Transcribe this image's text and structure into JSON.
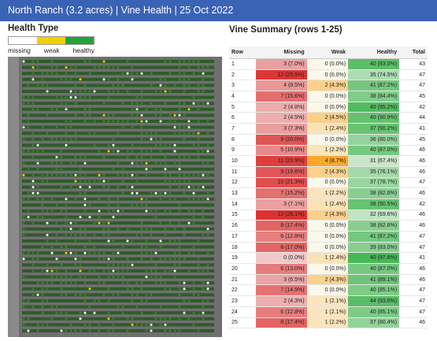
{
  "header": {
    "title": "North Ranch (3.2 acres) | Vine Health | 25 Oct 2022"
  },
  "health_type": {
    "title": "Health Type",
    "legend": [
      {
        "label": "missing",
        "color": "#ffffff"
      },
      {
        "label": "weak",
        "color": "#f2d000"
      },
      {
        "label": "healthy",
        "color": "#25a23a"
      }
    ]
  },
  "summary": {
    "title": "Vine Summary (rows 1-25)",
    "columns": [
      "Row",
      "Missing",
      "Weak",
      "Healthy",
      "Total"
    ],
    "rows": [
      {
        "row": "1",
        "missing": "3 (7.0%)",
        "weak": "0 (0.0%)",
        "healthy": "40 (93.0%)",
        "total": "43",
        "mp": 7.0,
        "wp": 0.0,
        "hp": 93.0
      },
      {
        "row": "2",
        "missing": "12 (25.5%)",
        "weak": "0 (0.0%)",
        "healthy": "35 (74.5%)",
        "total": "47",
        "mp": 25.5,
        "wp": 0.0,
        "hp": 74.5
      },
      {
        "row": "3",
        "missing": "4 (8.5%)",
        "weak": "2 (4.3%)",
        "healthy": "41 (87.2%)",
        "total": "47",
        "mp": 8.5,
        "wp": 4.3,
        "hp": 87.2
      },
      {
        "row": "4",
        "missing": "7 (15.6%)",
        "weak": "0 (0.0%)",
        "healthy": "38 (84.4%)",
        "total": "45",
        "mp": 15.6,
        "wp": 0.0,
        "hp": 84.4
      },
      {
        "row": "5",
        "missing": "2 (4.8%)",
        "weak": "0 (0.0%)",
        "healthy": "40 (95.2%)",
        "total": "42",
        "mp": 4.8,
        "wp": 0.0,
        "hp": 95.2
      },
      {
        "row": "6",
        "missing": "2 (4.5%)",
        "weak": "2 (4.5%)",
        "healthy": "40 (90.9%)",
        "total": "44",
        "mp": 4.5,
        "wp": 4.5,
        "hp": 90.9
      },
      {
        "row": "7",
        "missing": "3 (7.3%)",
        "weak": "1 (2.4%)",
        "healthy": "37 (90.2%)",
        "total": "41",
        "mp": 7.3,
        "wp": 2.4,
        "hp": 90.2
      },
      {
        "row": "8",
        "missing": "9 (20.0%)",
        "weak": "0 (0.0%)",
        "healthy": "36 (80.0%)",
        "total": "45",
        "mp": 20.0,
        "wp": 0.0,
        "hp": 80.0
      },
      {
        "row": "9",
        "missing": "5 (10.9%)",
        "weak": "1 (2.2%)",
        "healthy": "40 (87.0%)",
        "total": "46",
        "mp": 10.9,
        "wp": 2.2,
        "hp": 87.0
      },
      {
        "row": "10",
        "missing": "11 (23.9%)",
        "weak": "4 (8.7%)",
        "healthy": "31 (67.4%)",
        "total": "46",
        "mp": 23.9,
        "wp": 8.7,
        "hp": 67.4
      },
      {
        "row": "11",
        "missing": "9 (19.6%)",
        "weak": "2 (4.3%)",
        "healthy": "35 (76.1%)",
        "total": "46",
        "mp": 19.6,
        "wp": 4.3,
        "hp": 76.1
      },
      {
        "row": "12",
        "missing": "10 (21.3%)",
        "weak": "0 (0.0%)",
        "healthy": "37 (78.7%)",
        "total": "47",
        "mp": 21.3,
        "wp": 0.0,
        "hp": 78.7
      },
      {
        "row": "13",
        "missing": "7 (15.2%)",
        "weak": "1 (2.2%)",
        "healthy": "38 (82.6%)",
        "total": "46",
        "mp": 15.2,
        "wp": 2.2,
        "hp": 82.6
      },
      {
        "row": "14",
        "missing": "3 (7.1%)",
        "weak": "1 (2.4%)",
        "healthy": "38 (90.5%)",
        "total": "42",
        "mp": 7.1,
        "wp": 2.4,
        "hp": 90.5
      },
      {
        "row": "15",
        "missing": "12 (26.1%)",
        "weak": "2 (4.3%)",
        "healthy": "32 (69.6%)",
        "total": "46",
        "mp": 26.1,
        "wp": 4.3,
        "hp": 69.6
      },
      {
        "row": "16",
        "missing": "8 (17.4%)",
        "weak": "0 (0.0%)",
        "healthy": "38 (82.6%)",
        "total": "46",
        "mp": 17.4,
        "wp": 0.0,
        "hp": 82.6
      },
      {
        "row": "17",
        "missing": "6 (12.8%)",
        "weak": "0 (0.0%)",
        "healthy": "41 (87.2%)",
        "total": "47",
        "mp": 12.8,
        "wp": 0.0,
        "hp": 87.2
      },
      {
        "row": "18",
        "missing": "8 (17.0%)",
        "weak": "0 (0.0%)",
        "healthy": "39 (83.0%)",
        "total": "47",
        "mp": 17.0,
        "wp": 0.0,
        "hp": 83.0
      },
      {
        "row": "19",
        "missing": "0 (0.0%)",
        "weak": "1 (2.4%)",
        "healthy": "40 (97.6%)",
        "total": "41",
        "mp": 0.0,
        "wp": 2.4,
        "hp": 97.6
      },
      {
        "row": "20",
        "missing": "6 (13.0%)",
        "weak": "0 (0.0%)",
        "healthy": "40 (87.0%)",
        "total": "46",
        "mp": 13.0,
        "wp": 0.0,
        "hp": 87.0
      },
      {
        "row": "21",
        "missing": "3 (6.5%)",
        "weak": "2 (4.3%)",
        "healthy": "41 (89.1%)",
        "total": "46",
        "mp": 6.5,
        "wp": 4.3,
        "hp": 89.1
      },
      {
        "row": "22",
        "missing": "7 (14.9%)",
        "weak": "0 (0.0%)",
        "healthy": "40 (85.1%)",
        "total": "47",
        "mp": 14.9,
        "wp": 0.0,
        "hp": 85.1
      },
      {
        "row": "23",
        "missing": "2 (4.3%)",
        "weak": "1 (2.1%)",
        "healthy": "44 (93.6%)",
        "total": "47",
        "mp": 4.3,
        "wp": 2.1,
        "hp": 93.6
      },
      {
        "row": "24",
        "missing": "6 (12.8%)",
        "weak": "1 (2.1%)",
        "healthy": "40 (85.1%)",
        "total": "47",
        "mp": 12.8,
        "wp": 2.1,
        "hp": 85.1
      },
      {
        "row": "25",
        "missing": "8 (17.4%)",
        "weak": "1 (2.2%)",
        "healthy": "37 (80.4%)",
        "total": "46",
        "mp": 17.4,
        "wp": 2.2,
        "hp": 80.4
      }
    ]
  }
}
